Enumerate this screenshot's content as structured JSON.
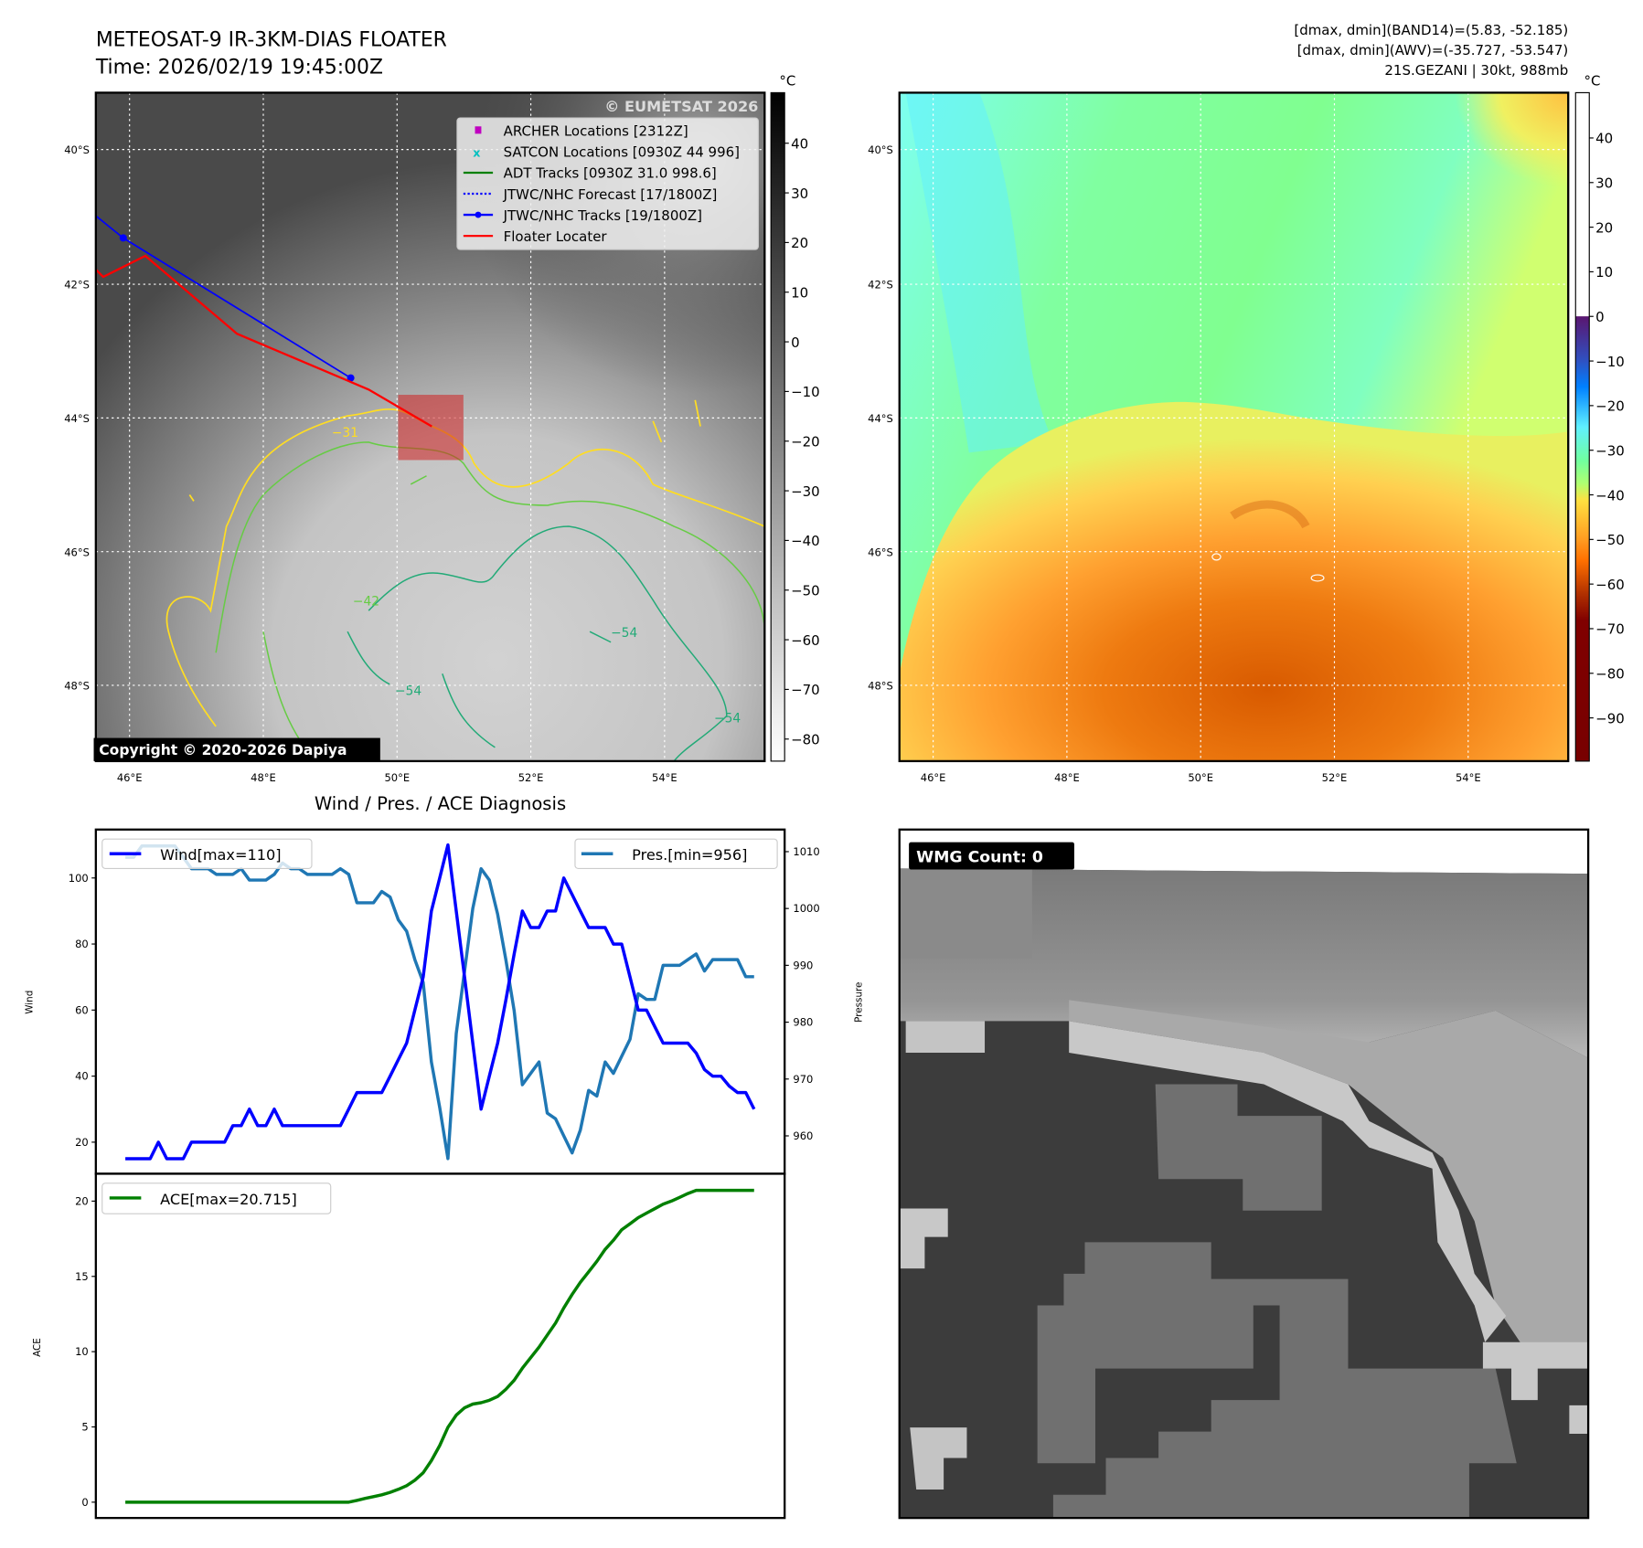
{
  "header": {
    "title_line1": "METEOSAT-9 IR-3KM-DIAS FLOATER",
    "title_line2": "Time: 2026/02/19 19:45:00Z",
    "info_line1": "[dmax, dmin](BAND14)=(5.83, -52.185)",
    "info_line2": "[dmax, dmin](AWV)=(-35.727, -53.547)",
    "info_line3": "21S.GEZANI | 30kt, 988mb"
  },
  "map": {
    "lat_labels": [
      "40°S",
      "42°S",
      "44°S",
      "46°S",
      "48°S"
    ],
    "lon_labels": [
      "46°E",
      "48°E",
      "50°E",
      "52°E",
      "54°E"
    ],
    "colorbar_unit": "°C",
    "ir_colorbar_ticks": [
      "40",
      "30",
      "20",
      "10",
      "0",
      "−10",
      "−20",
      "−30",
      "−40",
      "−50",
      "−60",
      "−70",
      "−80"
    ],
    "awv_colorbar_ticks": [
      "40",
      "30",
      "20",
      "10",
      "0",
      "−10",
      "−20",
      "−30",
      "−40",
      "−50",
      "−60",
      "−70",
      "−80",
      "−90"
    ],
    "watermark": "© EUMETSAT 2026",
    "copyright": "Copyright © 2020-2026 Dapiya",
    "contour_labels": [
      "−31",
      "−42",
      "−54"
    ],
    "legend": [
      {
        "label": "ARCHER Locations [2312Z]",
        "color": "#c000c0"
      },
      {
        "label": "SATCON Locations [0930Z 44 996]",
        "color": "#00c0c0"
      },
      {
        "label": "ADT Tracks [0930Z 31.0 998.6]",
        "color": "#008000"
      },
      {
        "label": "JTWC/NHC Forecast [17/1800Z]",
        "color": "#0000ff"
      },
      {
        "label": "JTWC/NHC Tracks [19/1800Z]",
        "color": "#0000ff"
      },
      {
        "label": "Floater Locater",
        "color": "#ff0000"
      }
    ]
  },
  "wmg": {
    "label": "WMG Count: 0"
  },
  "chart_data": [
    {
      "type": "line",
      "title": "Wind / Pres. / ACE Diagnosis",
      "ylabel": "Wind",
      "y2label": "Pressure",
      "ylim": [
        12,
        114
      ],
      "y2lim": [
        953.5,
        1015
      ],
      "yticks": [
        "20",
        "40",
        "60",
        "80",
        "100"
      ],
      "y2ticks": [
        "960",
        "970",
        "980",
        "990",
        "1000",
        "1010"
      ],
      "series": [
        {
          "name": "Wind[max=110]",
          "color": "#0000ff",
          "values": [
            15,
            15,
            15,
            15,
            20,
            15,
            15,
            15,
            20,
            20,
            20,
            20,
            20,
            25,
            25,
            30,
            25,
            25,
            30,
            25,
            25,
            25,
            25,
            25,
            25,
            25,
            25,
            30,
            35,
            35,
            35,
            35,
            40,
            45,
            50,
            60,
            70,
            90,
            100,
            110,
            90,
            70,
            50,
            30,
            40,
            50,
            63,
            77,
            90,
            85,
            85,
            90,
            90,
            100,
            95,
            90,
            85,
            85,
            85,
            80,
            80,
            70,
            60,
            60,
            55,
            50,
            50,
            50,
            50,
            47,
            42,
            40,
            40,
            37,
            35,
            35,
            30
          ]
        },
        {
          "name": "Pres.[min=956]",
          "color": "#1f77b4",
          "axis": "right",
          "values": [
            1009,
            1009,
            1011,
            1011,
            1011,
            1011,
            1011,
            1009,
            1007,
            1007,
            1007,
            1006,
            1006,
            1006,
            1007,
            1005,
            1005,
            1005,
            1006,
            1008,
            1007,
            1007,
            1006,
            1006,
            1006,
            1006,
            1007,
            1006,
            1001,
            1001,
            1001,
            1003,
            1002,
            998,
            996,
            991,
            987,
            973,
            965,
            956,
            978,
            989,
            1000,
            1007,
            1005,
            999,
            991,
            982,
            969,
            971,
            973,
            964,
            963,
            960,
            957,
            961,
            968,
            967,
            973,
            971,
            974,
            977,
            985,
            984,
            984,
            990,
            990,
            990,
            991,
            992,
            989,
            991,
            991,
            991,
            991,
            988,
            988
          ]
        }
      ]
    },
    {
      "type": "line",
      "ylabel": "ACE",
      "ylim": [
        -1.2,
        22.3
      ],
      "yticks": [
        "0",
        "5",
        "10",
        "15",
        "20"
      ],
      "series": [
        {
          "name": "ACE[max=20.715]",
          "color": "#008000",
          "values": [
            0,
            0,
            0,
            0,
            0,
            0,
            0,
            0,
            0,
            0,
            0,
            0,
            0,
            0,
            0,
            0,
            0,
            0,
            0,
            0,
            0,
            0,
            0,
            0,
            0,
            0,
            0,
            0,
            0.12,
            0.25,
            0.37,
            0.49,
            0.65,
            0.85,
            1.1,
            1.46,
            1.95,
            2.76,
            3.76,
            4.97,
            5.78,
            6.27,
            6.52,
            6.61,
            6.77,
            7.02,
            7.5,
            8.1,
            8.9,
            9.6,
            10.3,
            11.1,
            11.9,
            12.9,
            13.8,
            14.6,
            15.3,
            16.0,
            16.8,
            17.4,
            18.1,
            18.5,
            18.9,
            19.2,
            19.5,
            19.8,
            20.0,
            20.25,
            20.5,
            20.715,
            20.715,
            20.715,
            20.715,
            20.715,
            20.715,
            20.715,
            20.715
          ]
        }
      ]
    }
  ]
}
